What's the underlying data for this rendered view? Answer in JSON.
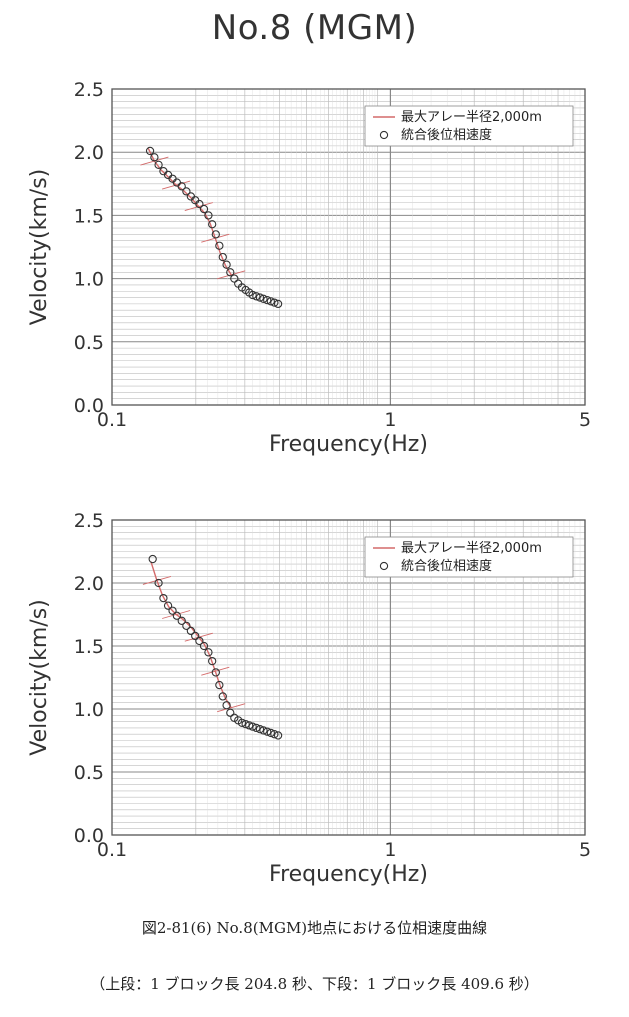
{
  "title": "No.8 (MGM)",
  "caption": "図2-81(6) No.8(MGM)地点における位相速度曲線",
  "subcaption": "（上段：1 ブロック長 204.8 秒、下段：1 ブロック長 409.6 秒）",
  "colors": {
    "curve": "#d46a6a",
    "points": "#333333",
    "grid": "#bdbdbd",
    "major": "#888888"
  },
  "chart_data": [
    {
      "type": "scatter",
      "xlabel": "Frequency(Hz)",
      "ylabel": "Velocity(km/s)",
      "xscale": "log",
      "xlim": [
        0.1,
        5
      ],
      "ylim": [
        0.0,
        2.5
      ],
      "xticks": [
        "0.1",
        "1",
        "5"
      ],
      "yticks": [
        "0.0",
        "0.5",
        "1.0",
        "1.5",
        "2.0",
        "2.5"
      ],
      "legend": {
        "position": "top-right",
        "entries": [
          "最大アレー半径2,000m",
          "統合後位相速度"
        ]
      },
      "series": [
        {
          "name": "統合後位相速度",
          "x": [
            0.137,
            0.142,
            0.147,
            0.153,
            0.159,
            0.165,
            0.171,
            0.178,
            0.185,
            0.192,
            0.199,
            0.206,
            0.214,
            0.222,
            0.229,
            0.236,
            0.243,
            0.25,
            0.258,
            0.266,
            0.275,
            0.284,
            0.293,
            0.302,
            0.311,
            0.32,
            0.33,
            0.34,
            0.35,
            0.361,
            0.372,
            0.383,
            0.395
          ],
          "y": [
            2.01,
            1.96,
            1.9,
            1.85,
            1.82,
            1.79,
            1.76,
            1.73,
            1.69,
            1.65,
            1.62,
            1.59,
            1.55,
            1.5,
            1.43,
            1.35,
            1.26,
            1.17,
            1.11,
            1.05,
            1.0,
            0.96,
            0.93,
            0.91,
            0.89,
            0.87,
            0.86,
            0.85,
            0.84,
            0.83,
            0.82,
            0.81,
            0.8
          ]
        },
        {
          "name": "最大アレー半径2,000m",
          "x": [
            0.135,
            0.142,
            0.15,
            0.16,
            0.17,
            0.18,
            0.192,
            0.205,
            0.215,
            0.225,
            0.235,
            0.245,
            0.256,
            0.268
          ],
          "y": [
            2.03,
            1.93,
            1.86,
            1.8,
            1.74,
            1.7,
            1.64,
            1.57,
            1.52,
            1.44,
            1.32,
            1.2,
            1.1,
            1.03
          ]
        }
      ]
    },
    {
      "type": "scatter",
      "xlabel": "Frequency(Hz)",
      "ylabel": "Velocity(km/s)",
      "xscale": "log",
      "xlim": [
        0.1,
        5
      ],
      "ylim": [
        0.0,
        2.5
      ],
      "xticks": [
        "0.1",
        "1",
        "5"
      ],
      "yticks": [
        "0.0",
        "0.5",
        "1.0",
        "1.5",
        "2.0",
        "2.5"
      ],
      "legend": {
        "position": "top-right",
        "entries": [
          "最大アレー半径2,000m",
          "統合後位相速度"
        ]
      },
      "series": [
        {
          "name": "統合後位相速度",
          "x": [
            0.14,
            0.147,
            0.153,
            0.159,
            0.165,
            0.171,
            0.178,
            0.185,
            0.192,
            0.199,
            0.206,
            0.214,
            0.222,
            0.229,
            0.236,
            0.243,
            0.25,
            0.258,
            0.266,
            0.275,
            0.284,
            0.293,
            0.302,
            0.311,
            0.32,
            0.33,
            0.34,
            0.35,
            0.361,
            0.372,
            0.383,
            0.395
          ],
          "y": [
            2.19,
            2.0,
            1.88,
            1.82,
            1.78,
            1.74,
            1.7,
            1.66,
            1.62,
            1.58,
            1.54,
            1.5,
            1.45,
            1.38,
            1.29,
            1.19,
            1.1,
            1.03,
            0.97,
            0.93,
            0.91,
            0.89,
            0.88,
            0.87,
            0.86,
            0.85,
            0.84,
            0.83,
            0.82,
            0.81,
            0.8,
            0.79
          ]
        },
        {
          "name": "最大アレー半径2,000m",
          "x": [
            0.138,
            0.145,
            0.152,
            0.16,
            0.17,
            0.18,
            0.192,
            0.205,
            0.215,
            0.225,
            0.235,
            0.245,
            0.256,
            0.268
          ],
          "y": [
            2.17,
            2.02,
            1.9,
            1.81,
            1.75,
            1.71,
            1.65,
            1.57,
            1.51,
            1.42,
            1.3,
            1.18,
            1.08,
            1.01
          ]
        }
      ]
    }
  ]
}
